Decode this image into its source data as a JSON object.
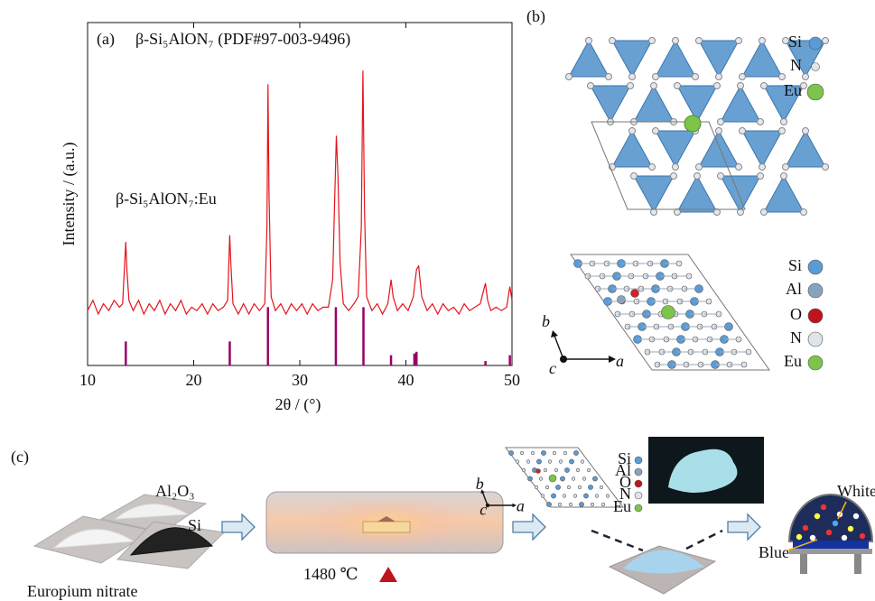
{
  "chart_data": {
    "type": "line",
    "panel_label": "(a)",
    "legend_title": "β-Si₅AlON₇ (PDF#97-003-9496)",
    "annotation": "β-Si₅AlON₇:Eu",
    "x_label": "2θ / (°)",
    "y_label": "Intensity / (a.u.)",
    "xlim": [
      10,
      50
    ],
    "xticks": [
      10,
      20,
      30,
      40,
      50
    ],
    "ylim": [
      0,
      100
    ],
    "series": [
      {
        "type": "line",
        "color": "#e3141c",
        "x": [
          10,
          10.5,
          11,
          11.5,
          12,
          12.5,
          13,
          13.3,
          13.5,
          13.6,
          13.7,
          13.9,
          14.3,
          14.8,
          15.3,
          15.8,
          16.3,
          16.8,
          17.3,
          17.8,
          18.3,
          18.8,
          19.3,
          19.8,
          20.3,
          20.8,
          21.3,
          21.8,
          22.3,
          22.8,
          23.2,
          23.4,
          23.5,
          23.7,
          24.2,
          24.7,
          25.2,
          25.7,
          26.2,
          26.7,
          26.9,
          27.0,
          27.1,
          27.3,
          27.7,
          28.2,
          28.7,
          29.2,
          29.7,
          30.2,
          30.7,
          31.2,
          31.7,
          32.2,
          32.7,
          33.1,
          33.3,
          33.45,
          33.6,
          33.8,
          34.1,
          34.6,
          35.1,
          35.5,
          35.8,
          35.95,
          36.1,
          36.3,
          36.8,
          37.3,
          37.8,
          38.3,
          38.6,
          38.8,
          39.2,
          39.7,
          40.2,
          40.7,
          41.0,
          41.2,
          41.5,
          42,
          42.5,
          43,
          43.5,
          44,
          44.5,
          45,
          45.5,
          46,
          46.5,
          47,
          47.5,
          47.7,
          48,
          48.5,
          49,
          49.5,
          49.8,
          50
        ],
        "values": [
          16,
          19,
          15,
          18,
          16,
          19,
          17,
          18,
          30,
          36,
          28,
          19,
          16,
          19,
          15,
          18,
          16,
          19,
          15,
          18,
          16,
          19,
          15,
          17,
          16,
          18,
          15,
          18,
          16,
          17,
          19,
          38,
          30,
          18,
          15,
          18,
          15,
          18,
          16,
          18,
          40,
          82,
          50,
          20,
          16,
          18,
          15,
          18,
          16,
          18,
          15,
          18,
          16,
          17,
          17,
          25,
          50,
          67,
          55,
          30,
          18,
          16,
          18,
          20,
          40,
          86,
          45,
          20,
          16,
          18,
          15,
          18,
          25,
          20,
          16,
          18,
          16,
          20,
          28,
          29,
          20,
          16,
          18,
          15,
          18,
          16,
          17,
          15,
          18,
          16,
          17,
          18,
          24,
          19,
          16,
          17,
          16,
          17,
          23,
          19
        ]
      },
      {
        "type": "stem",
        "color": "#990066",
        "x": [
          13.6,
          23.4,
          27.0,
          33.4,
          36.0,
          38.6,
          40.8,
          41.0,
          47.5,
          49.8
        ],
        "values": [
          7,
          7,
          17,
          17,
          17,
          3,
          3.5,
          4,
          1.3,
          3
        ]
      }
    ]
  },
  "panel_b": {
    "label": "(b)",
    "legend_top": [
      "Si",
      "N",
      "Eu"
    ],
    "legend_bottom": [
      "Si",
      "Al",
      "O",
      "N",
      "Eu"
    ],
    "axes": [
      "b",
      "c",
      "a"
    ]
  },
  "panel_c": {
    "label": "(c)",
    "al2o3": "Al₂O₃",
    "si": "Si",
    "europium": "Europium nitrate",
    "temperature": "1480 ℃",
    "axes": [
      "b",
      "c",
      "a"
    ],
    "legend": [
      "Si",
      "Al",
      "O",
      "N",
      "Eu"
    ],
    "white": "White",
    "blue": "Blue"
  }
}
